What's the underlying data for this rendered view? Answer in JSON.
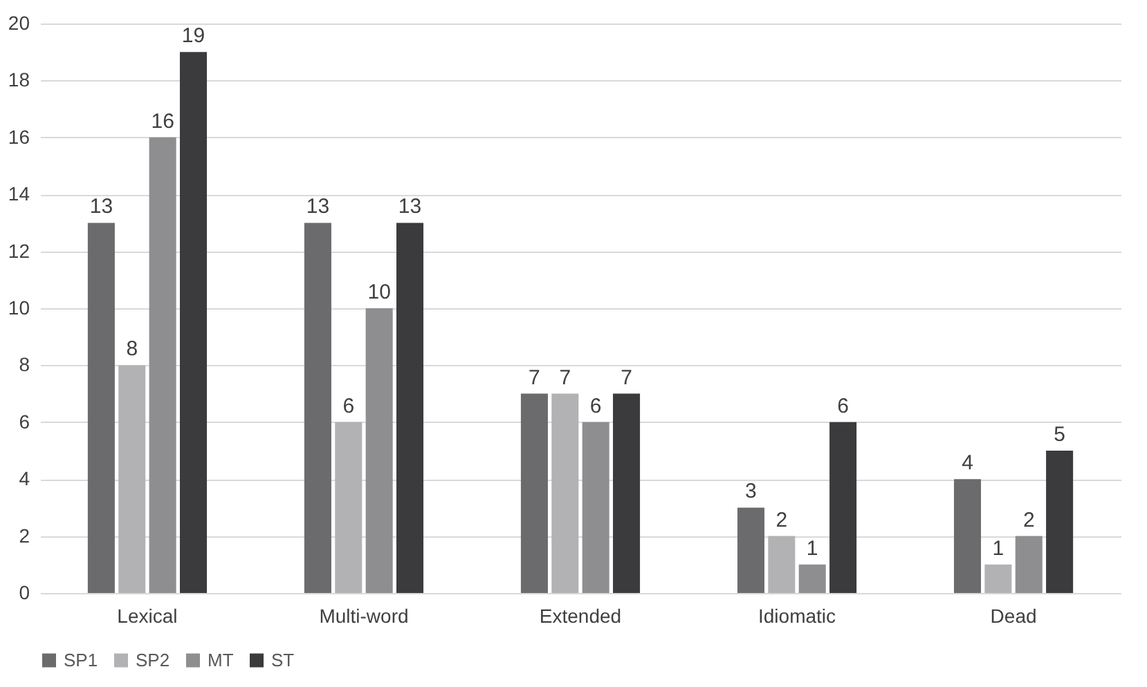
{
  "chart_data": {
    "type": "bar",
    "categories": [
      "Lexical",
      "Multi-word",
      "Extended",
      "Idiomatic",
      "Dead"
    ],
    "series": [
      {
        "name": "SP1",
        "color": "#6b6b6e",
        "values": [
          13,
          13,
          7,
          3,
          4
        ]
      },
      {
        "name": "SP2",
        "color": "#b2b2b4",
        "values": [
          8,
          6,
          7,
          2,
          1
        ]
      },
      {
        "name": "MT",
        "color": "#8e8e90",
        "values": [
          16,
          10,
          6,
          1,
          2
        ]
      },
      {
        "name": "ST",
        "color": "#3b3b3d",
        "values": [
          19,
          13,
          7,
          6,
          5
        ]
      }
    ],
    "ylim": [
      0,
      20
    ],
    "yticks": [
      0,
      2,
      4,
      6,
      8,
      10,
      12,
      14,
      16,
      18,
      20
    ],
    "grid": "y",
    "legend": "bottom",
    "data_labels": true
  }
}
